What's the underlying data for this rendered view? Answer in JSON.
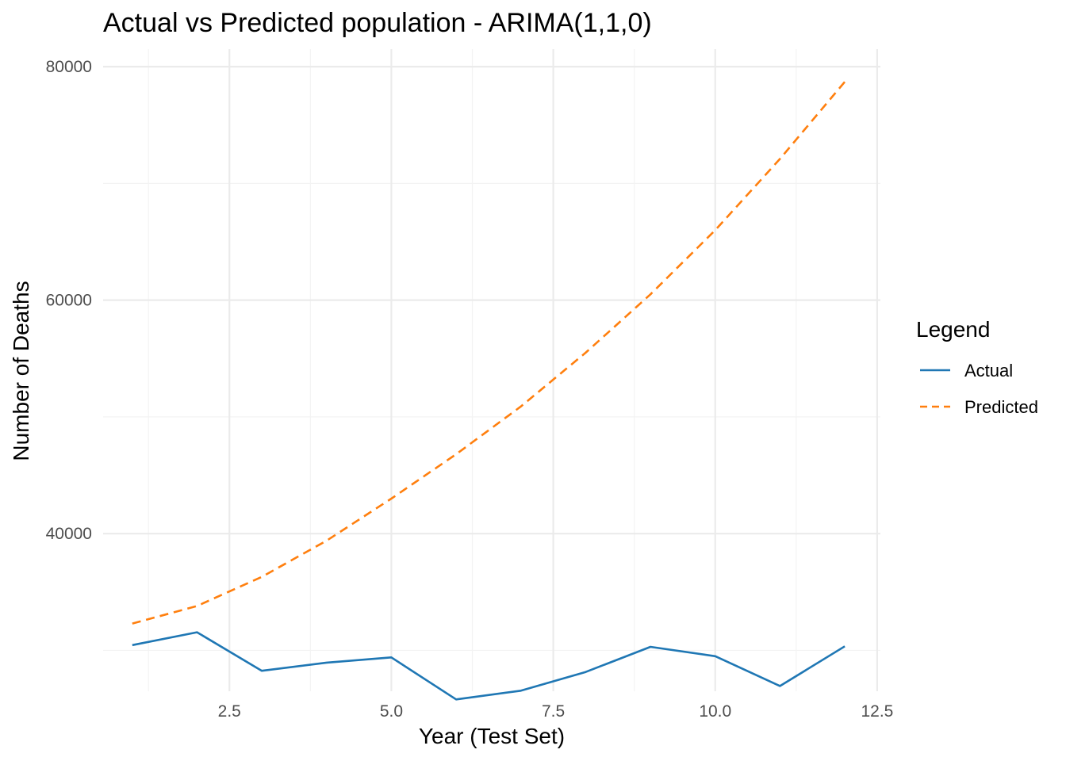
{
  "chart_data": {
    "type": "line",
    "title": "Actual vs Predicted population - ARIMA(1,1,0)",
    "xlabel": "Year (Test Set)",
    "ylabel": "Number of Deaths",
    "xlim": [
      0.55,
      12.55
    ],
    "ylim": [
      26500,
      81500
    ],
    "x_ticks": [
      2.5,
      5.0,
      7.5,
      10.0,
      12.5
    ],
    "x_tick_labels": [
      "2.5",
      "5.0",
      "7.5",
      "10.0",
      "12.5"
    ],
    "y_ticks": [
      40000,
      60000,
      80000
    ],
    "y_tick_labels": [
      "40000",
      "60000",
      "80000"
    ],
    "grid": true,
    "legend": {
      "title": "Legend",
      "position": "right"
    },
    "x": [
      1,
      2,
      3,
      4,
      5,
      6,
      7,
      8,
      9,
      10,
      11,
      12
    ],
    "series": [
      {
        "name": "Actual",
        "color": "#1f77b4",
        "dash": "solid",
        "values": [
          30450,
          31550,
          28250,
          28950,
          29400,
          25800,
          26550,
          28150,
          30300,
          29500,
          26950,
          30350
        ]
      },
      {
        "name": "Predicted",
        "color": "#ff7f0e",
        "dash": "dashed",
        "values": [
          32300,
          33800,
          36300,
          39400,
          43000,
          46800,
          50900,
          55500,
          60500,
          66000,
          72100,
          78700
        ]
      }
    ]
  }
}
